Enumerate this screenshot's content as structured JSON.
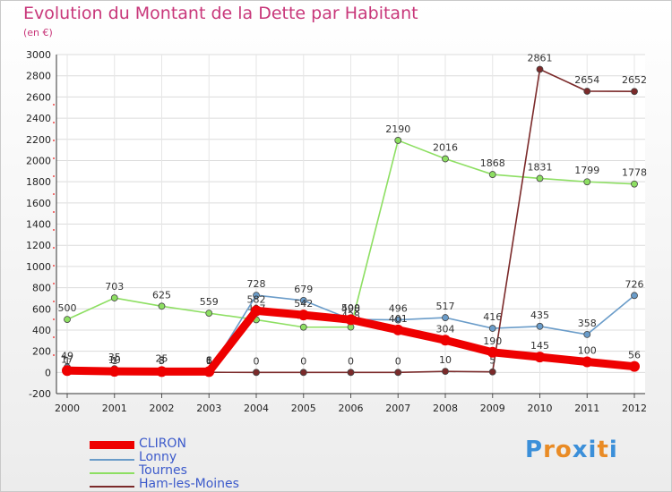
{
  "chart_data": {
    "type": "line",
    "title": "Evolution du Montant de la Dette par Habitant",
    "subtitle": "(en €)",
    "x": [
      "2000",
      "2001",
      "2002",
      "2003",
      "2004",
      "2005",
      "2006",
      "2007",
      "2008",
      "2009",
      "2010",
      "2011",
      "2012"
    ],
    "ylim": [
      -200,
      3000
    ],
    "yticks": [
      -200,
      0,
      200,
      400,
      600,
      800,
      1000,
      1200,
      1400,
      1600,
      1800,
      2000,
      2200,
      2400,
      2600,
      2800,
      3000
    ],
    "grid": true,
    "legend_position": "bottom-left",
    "series": [
      {
        "name": "Tournes",
        "color": "#8ddf62",
        "values": [
          500,
          703,
          625,
          559,
          497,
          427,
          428,
          2190,
          2016,
          1868,
          1831,
          1799,
          1778
        ]
      },
      {
        "name": "Lonny",
        "color": "#6a9cc9",
        "values": [
          49,
          35,
          25,
          6,
          728,
          679,
          500,
          496,
          517,
          416,
          435,
          358,
          726
        ]
      },
      {
        "name": "Ham-les-Moines",
        "color": "#7b2a2a",
        "values": [
          1,
          1,
          3,
          1,
          0,
          0,
          0,
          0,
          10,
          5,
          2861,
          2654,
          2652
        ]
      },
      {
        "name": "CLIRON",
        "color": "#ee0000",
        "values": [
          17,
          10,
          8,
          8,
          582,
          542,
          498,
          401,
          304,
          190,
          145,
          100,
          56
        ]
      }
    ]
  },
  "brand": {
    "text": "Proxiti"
  }
}
